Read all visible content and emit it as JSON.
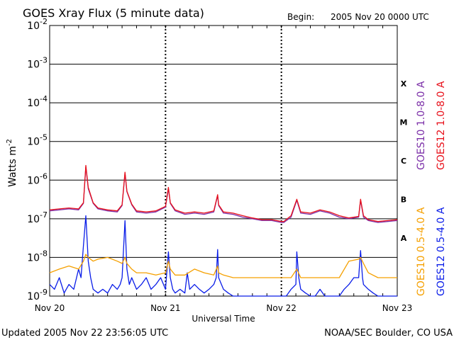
{
  "chart_data": {
    "type": "line",
    "title": "GOES Xray Flux (5 minute data)",
    "begin_label": "Begin:",
    "begin_value": "2005 Nov 20 0000 UTC",
    "xlabel": "Universal Time",
    "ylabel": "Watts m",
    "ylabel_superscript": "-2",
    "x_ticks": [
      "Nov 20",
      "Nov 21",
      "Nov 22",
      "Nov 23"
    ],
    "x_range_hours": [
      0,
      72
    ],
    "y_scale": "log",
    "ylim": [
      1e-09,
      0.01
    ],
    "y_ticks": [
      {
        "base": "10",
        "exp": "-2",
        "value": 0.01
      },
      {
        "base": "10",
        "exp": "-3",
        "value": 0.001
      },
      {
        "base": "10",
        "exp": "-4",
        "value": 0.0001
      },
      {
        "base": "10",
        "exp": "-5",
        "value": 1e-05
      },
      {
        "base": "10",
        "exp": "-6",
        "value": 1e-06
      },
      {
        "base": "10",
        "exp": "-7",
        "value": 1e-07
      },
      {
        "base": "10",
        "exp": "-8",
        "value": 1e-08
      },
      {
        "base": "10",
        "exp": "-9",
        "value": 1e-09
      }
    ],
    "flare_classes": [
      {
        "label": "X",
        "low": 0.0001,
        "high": 0.001
      },
      {
        "label": "M",
        "low": 1e-05,
        "high": 0.0001
      },
      {
        "label": "C",
        "low": 1e-06,
        "high": 1e-05
      },
      {
        "label": "B",
        "low": 1e-07,
        "high": 1e-06
      },
      {
        "label": "A",
        "low": 1e-08,
        "high": 1e-07
      }
    ],
    "series": [
      {
        "name": "GOES10 1.0-8.0 A",
        "color": "#7b2fa8",
        "x": [
          0,
          2,
          4,
          6,
          7,
          7.5,
          8,
          9,
          10,
          12,
          14,
          15,
          15.6,
          16,
          17,
          18,
          20,
          22,
          24,
          24.6,
          25,
          26,
          28,
          30,
          32,
          34,
          34.8,
          35,
          36,
          38,
          40,
          42,
          44,
          46,
          48,
          48.5,
          50,
          51.2,
          52,
          54,
          56,
          58,
          60,
          62,
          64,
          64.4,
          65,
          66,
          68,
          70,
          72
        ],
        "values": [
          1.6e-07,
          1.7e-07,
          1.8e-07,
          1.7e-07,
          2.5e-07,
          2.2e-06,
          6e-07,
          2.5e-07,
          1.8e-07,
          1.6e-07,
          1.5e-07,
          2.2e-07,
          1.5e-06,
          5e-07,
          2.3e-07,
          1.5e-07,
          1.4e-07,
          1.5e-07,
          2e-07,
          6e-07,
          2.5e-07,
          1.6e-07,
          1.3e-07,
          1.4e-07,
          1.3e-07,
          1.5e-07,
          4e-07,
          2.2e-07,
          1.4e-07,
          1.3e-07,
          1.1e-07,
          1e-07,
          9e-08,
          9e-08,
          8e-08,
          8e-08,
          1.1e-07,
          3e-07,
          1.4e-07,
          1.3e-07,
          1.6e-07,
          1.4e-07,
          1.1e-07,
          1e-07,
          1.1e-07,
          3e-07,
          1.1e-07,
          9e-08,
          8e-08,
          8.5e-08,
          9e-08
        ]
      },
      {
        "name": "GOES12 1.0-8.0 A",
        "color": "#e8101a",
        "x": [
          0,
          2,
          4,
          6,
          7,
          7.5,
          8,
          9,
          10,
          12,
          14,
          15,
          15.6,
          16,
          17,
          18,
          20,
          22,
          24,
          24.6,
          25,
          26,
          28,
          30,
          32,
          34,
          34.8,
          35,
          36,
          38,
          40,
          42,
          44,
          46,
          48,
          48.5,
          50,
          51.2,
          52,
          54,
          56,
          58,
          60,
          62,
          64,
          64.4,
          65,
          66,
          68,
          70,
          72
        ],
        "values": [
          1.7e-07,
          1.8e-07,
          1.9e-07,
          1.8e-07,
          2.6e-07,
          2.4e-06,
          6.5e-07,
          2.6e-07,
          1.9e-07,
          1.7e-07,
          1.6e-07,
          2.3e-07,
          1.6e-06,
          5.2e-07,
          2.4e-07,
          1.6e-07,
          1.5e-07,
          1.6e-07,
          2.1e-07,
          6.5e-07,
          2.6e-07,
          1.7e-07,
          1.4e-07,
          1.5e-07,
          1.4e-07,
          1.6e-07,
          4.2e-07,
          2.3e-07,
          1.5e-07,
          1.4e-07,
          1.2e-07,
          1.05e-07,
          9.5e-08,
          9.5e-08,
          8.5e-08,
          8.5e-08,
          1.2e-07,
          3.2e-07,
          1.5e-07,
          1.4e-07,
          1.7e-07,
          1.5e-07,
          1.2e-07,
          1.05e-07,
          1.15e-07,
          3.2e-07,
          1.2e-07,
          9.5e-08,
          8.5e-08,
          9e-08,
          9.5e-08
        ]
      },
      {
        "name": "GOES10 0.5-4.0 A",
        "color": "#f5a000",
        "x": [
          0,
          2,
          4,
          6,
          7,
          7.5,
          8,
          9,
          10,
          12,
          14,
          15,
          15.6,
          16,
          17,
          18,
          20,
          22,
          24,
          24.6,
          25,
          26,
          28,
          30,
          32,
          34,
          34.8,
          35,
          36,
          38,
          40,
          42,
          44,
          46,
          48,
          48.5,
          50,
          51.2,
          52,
          54,
          56,
          58,
          60,
          62,
          64,
          64.4,
          65,
          66,
          68,
          70,
          72
        ],
        "values": [
          4e-09,
          5e-09,
          6e-09,
          5e-09,
          8e-09,
          1.2e-08,
          1e-08,
          8e-09,
          9e-09,
          1e-08,
          8e-09,
          7e-09,
          1e-08,
          7e-09,
          5e-09,
          4e-09,
          4e-09,
          3.5e-09,
          4e-09,
          8e-09,
          5e-09,
          3.5e-09,
          3.5e-09,
          5e-09,
          4e-09,
          3.5e-09,
          6e-09,
          4e-09,
          3.5e-09,
          3e-09,
          3e-09,
          3e-09,
          3e-09,
          3e-09,
          3e-09,
          3e-09,
          3e-09,
          5e-09,
          3e-09,
          3e-09,
          3e-09,
          3e-09,
          3e-09,
          8e-09,
          9e-09,
          1e-08,
          7e-09,
          4e-09,
          3e-09,
          3e-09,
          3e-09
        ]
      },
      {
        "name": "GOES12 0.5-4.0 A",
        "color": "#0a1de8",
        "x": [
          0,
          1,
          2,
          3,
          4,
          5,
          6,
          6.5,
          7,
          7.5,
          8,
          8.5,
          9,
          10,
          11,
          12,
          13,
          14,
          14.6,
          15,
          15.6,
          16,
          16.5,
          17,
          18,
          19,
          20,
          21,
          22,
          23,
          24,
          24.6,
          25,
          25.5,
          26,
          27,
          28,
          28.5,
          29,
          30,
          31,
          32,
          33,
          34,
          34.5,
          34.8,
          35,
          36,
          37,
          38,
          40,
          42,
          44,
          46,
          48,
          49,
          50,
          51,
          51.2,
          51.6,
          52,
          53,
          54,
          55,
          56,
          57,
          58,
          59,
          60,
          61,
          62,
          63,
          64,
          64.4,
          64.8,
          65,
          66,
          67,
          68,
          69,
          70,
          71,
          72
        ],
        "values": [
          2e-09,
          1.5e-09,
          3e-09,
          1.2e-09,
          2e-09,
          1.5e-09,
          5e-09,
          3e-09,
          2e-08,
          1.2e-07,
          8e-09,
          3e-09,
          1.5e-09,
          1.2e-09,
          1.5e-09,
          1.2e-09,
          2e-09,
          1.5e-09,
          2e-09,
          3e-09,
          9e-08,
          5e-09,
          2e-09,
          3e-09,
          1.5e-09,
          2e-09,
          3e-09,
          1.5e-09,
          2e-09,
          3e-09,
          1.5e-09,
          1.4e-08,
          3e-09,
          1.5e-09,
          1.2e-09,
          1.5e-09,
          1.2e-09,
          4e-09,
          1.5e-09,
          2e-09,
          1.5e-09,
          1.2e-09,
          1.5e-09,
          2e-09,
          3e-09,
          1.6e-08,
          3e-09,
          1.5e-09,
          1.2e-09,
          1e-09,
          1e-09,
          1e-09,
          1e-09,
          1e-09,
          1e-09,
          1e-09,
          1.5e-09,
          2e-09,
          1.4e-08,
          3e-09,
          1.5e-09,
          1.2e-09,
          1e-09,
          1e-09,
          1.5e-09,
          1e-09,
          1e-09,
          1e-09,
          1e-09,
          1.5e-09,
          2e-09,
          3e-09,
          3e-09,
          1.5e-08,
          3e-09,
          2e-09,
          1.5e-09,
          1.2e-09,
          1e-09,
          1e-09,
          1e-09,
          1e-09,
          1e-09
        ]
      }
    ],
    "footer_left": "Updated 2005 Nov 22 23:56:05 UTC",
    "footer_right": "NOAA/SEC Boulder, CO USA"
  }
}
